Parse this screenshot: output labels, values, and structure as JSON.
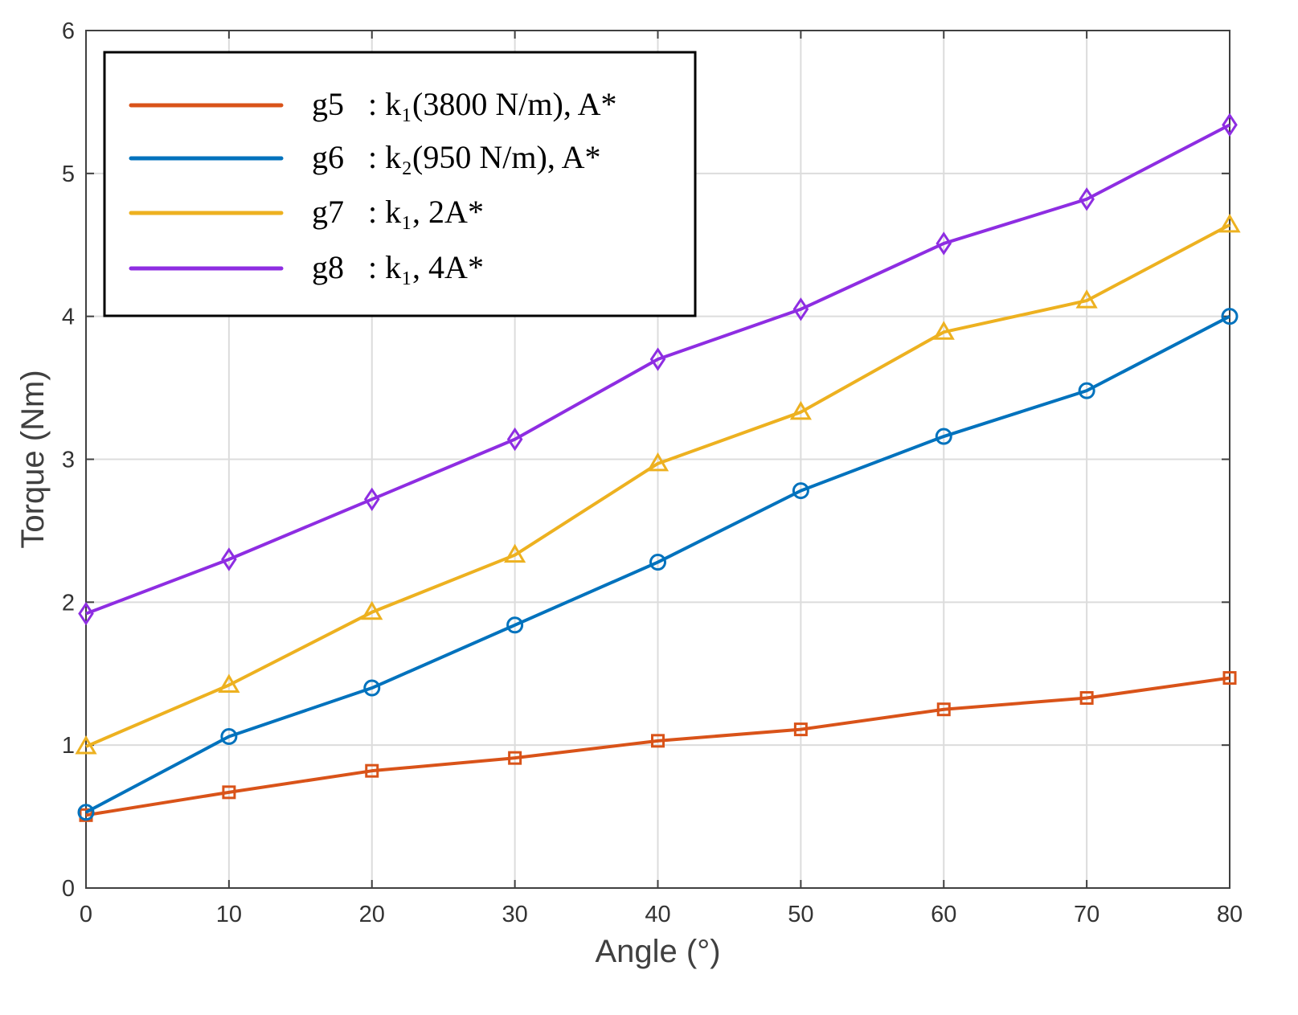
{
  "chart_data": {
    "type": "line",
    "title": "",
    "xlabel": "Angle (°)",
    "ylabel": "Torque (Nm)",
    "xlim": [
      0,
      80
    ],
    "ylim": [
      0,
      6
    ],
    "xticks": [
      "0",
      "10",
      "20",
      "30",
      "40",
      "50",
      "60",
      "70",
      "80"
    ],
    "yticks": [
      "0",
      "1",
      "2",
      "3",
      "4",
      "5",
      "6"
    ],
    "grid": true,
    "legend_position": "top-left",
    "x": [
      0,
      10,
      20,
      30,
      40,
      50,
      60,
      70,
      80
    ],
    "series": [
      {
        "name": "g5",
        "desc": ": k₁(3800 N/m), A*",
        "color": "#d95319",
        "marker": "square",
        "values": [
          0.51,
          0.67,
          0.82,
          0.91,
          1.03,
          1.11,
          1.25,
          1.33,
          1.47
        ]
      },
      {
        "name": "g6",
        "desc": ": k₂(950 N/m), A*",
        "color": "#0072bd",
        "marker": "circle",
        "values": [
          0.53,
          1.06,
          1.4,
          1.84,
          2.28,
          2.78,
          3.16,
          3.48,
          4.0
        ]
      },
      {
        "name": "g7",
        "desc": ": k₁, 2A*",
        "color": "#edb120",
        "marker": "triangle",
        "values": [
          0.99,
          1.42,
          1.93,
          2.33,
          2.97,
          3.33,
          3.89,
          4.11,
          4.64
        ]
      },
      {
        "name": "g8",
        "desc": ": k₁, 4A*",
        "color": "#8e2de2",
        "marker": "diamond",
        "values": [
          1.92,
          2.3,
          2.72,
          3.14,
          3.7,
          4.05,
          4.51,
          4.82,
          5.34
        ]
      }
    ]
  }
}
